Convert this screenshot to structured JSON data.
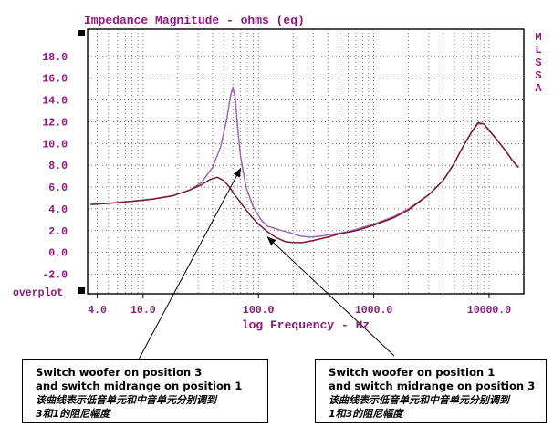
{
  "chart_data": {
    "type": "line",
    "title": "Impedance Magnitude - ohms (eq)",
    "xlabel": "log Frequency - Hz",
    "ylabel": "",
    "xscale": "log",
    "xlim": [
      3.3,
      20000
    ],
    "ylim": [
      -3.8,
      20.5
    ],
    "yticks": [
      18.0,
      16.0,
      14.0,
      12.0,
      10.0,
      8.0,
      6.0,
      4.0,
      2.0,
      0.0,
      -2.0
    ],
    "ytick_labels": [
      "18.0",
      "16.0",
      "14.0",
      "12.0",
      "10.0",
      "8.0",
      "6.0",
      "4.0",
      "2.0",
      "0.0",
      "-2.0"
    ],
    "xticks": [
      4,
      10,
      100,
      1000,
      10000
    ],
    "xtick_labels": [
      "4.0",
      "10.0",
      "100.0",
      "1000.0",
      "10000.0"
    ],
    "overplot_label": "overplot",
    "brand_letters": [
      "M",
      "L",
      "S",
      "S",
      "A"
    ],
    "grid": true,
    "series": [
      {
        "color": "#a066b0",
        "points": [
          [
            3.5,
            4.4
          ],
          [
            5,
            4.5
          ],
          [
            8,
            4.7
          ],
          [
            12,
            4.9
          ],
          [
            18,
            5.2
          ],
          [
            25,
            5.7
          ],
          [
            32,
            6.4
          ],
          [
            40,
            7.8
          ],
          [
            47,
            9.7
          ],
          [
            53,
            12.2
          ],
          [
            57,
            14.3
          ],
          [
            60,
            15.2
          ],
          [
            63,
            14.1
          ],
          [
            66,
            11.5
          ],
          [
            70,
            8.8
          ],
          [
            78,
            6.0
          ],
          [
            90,
            4.2
          ],
          [
            105,
            3.0
          ],
          [
            120,
            2.4
          ],
          [
            140,
            2.2
          ],
          [
            160,
            2.0
          ],
          [
            190,
            1.8
          ],
          [
            230,
            1.5
          ],
          [
            280,
            1.4
          ],
          [
            350,
            1.5
          ],
          [
            450,
            1.7
          ],
          [
            600,
            1.9
          ],
          [
            800,
            2.3
          ],
          [
            1000,
            2.6
          ],
          [
            1500,
            3.3
          ],
          [
            2000,
            4.0
          ],
          [
            3000,
            5.3
          ],
          [
            4000,
            6.6
          ],
          [
            5000,
            8.2
          ],
          [
            6000,
            9.8
          ],
          [
            7000,
            11.0
          ],
          [
            8000,
            11.8
          ],
          [
            9000,
            11.8
          ],
          [
            10000,
            11.2
          ],
          [
            12000,
            10.2
          ],
          [
            14000,
            9.3
          ],
          [
            16000,
            8.4
          ],
          [
            18000,
            7.8
          ]
        ]
      },
      {
        "color": "#7a1a30",
        "points": [
          [
            3.5,
            4.4
          ],
          [
            5,
            4.5
          ],
          [
            8,
            4.7
          ],
          [
            12,
            4.9
          ],
          [
            18,
            5.2
          ],
          [
            25,
            5.7
          ],
          [
            32,
            6.2
          ],
          [
            38,
            6.7
          ],
          [
            44,
            6.9
          ],
          [
            50,
            6.6
          ],
          [
            56,
            6.0
          ],
          [
            63,
            5.2
          ],
          [
            72,
            4.4
          ],
          [
            85,
            3.4
          ],
          [
            100,
            2.6
          ],
          [
            120,
            1.9
          ],
          [
            140,
            1.4
          ],
          [
            170,
            1.0
          ],
          [
            200,
            0.9
          ],
          [
            240,
            0.9
          ],
          [
            300,
            1.1
          ],
          [
            400,
            1.4
          ],
          [
            500,
            1.7
          ],
          [
            700,
            2.0
          ],
          [
            1000,
            2.5
          ],
          [
            1500,
            3.2
          ],
          [
            2000,
            3.9
          ],
          [
            3000,
            5.3
          ],
          [
            4000,
            6.6
          ],
          [
            5000,
            8.2
          ],
          [
            6000,
            9.8
          ],
          [
            7000,
            11.0
          ],
          [
            8000,
            11.9
          ],
          [
            9000,
            11.8
          ],
          [
            10000,
            11.2
          ],
          [
            12000,
            10.2
          ],
          [
            14000,
            9.3
          ],
          [
            16000,
            8.4
          ],
          [
            18000,
            7.8
          ]
        ]
      }
    ],
    "annotations": [
      {
        "text_en": [
          "Switch woofer on position 3",
          "and switch midrange on position 1"
        ],
        "text_cn": [
          "该曲线表示低音单元和中音单元分别调到",
          "3和1的阻尼幅度"
        ],
        "target": [
          70,
          7.7
        ]
      },
      {
        "text_en": [
          "Switch woofer on position 1",
          "and switch midrange on position 3"
        ],
        "text_cn": [
          "该曲线表示低音单元和中音单元分别调到",
          "1和3的阻尼幅度"
        ],
        "target": [
          120,
          1.4
        ]
      }
    ]
  }
}
